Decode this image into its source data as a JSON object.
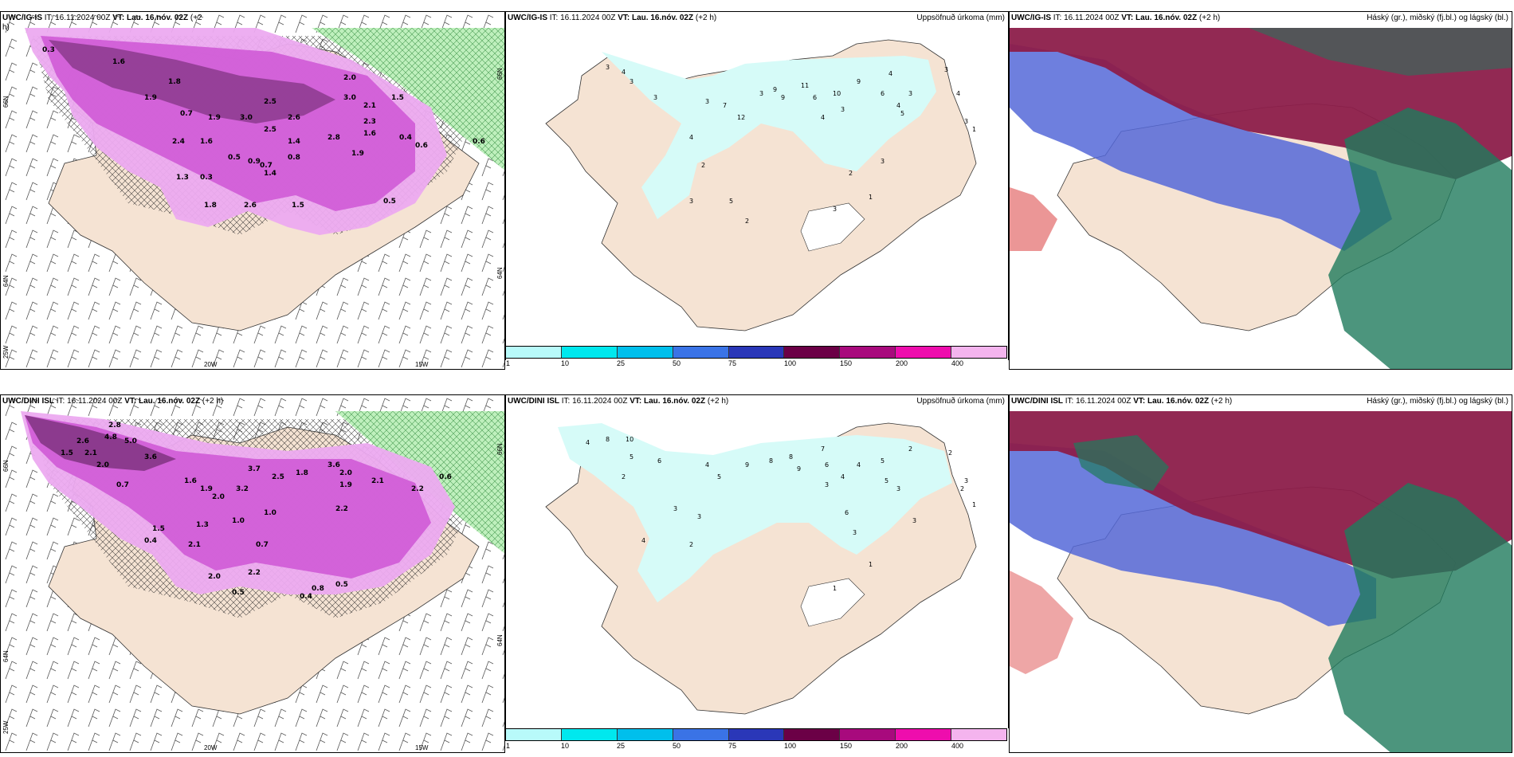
{
  "row1": {
    "wind_title": {
      "model": "UWC/IG-IS",
      "it_label": "IT:",
      "it_value": "16.11.2024 00Z",
      "vt_label": "VT:",
      "vt_value": "Lau. 16.nóv. 02Z",
      "lead": "(+2",
      "lead2": "h)"
    },
    "precip_title": {
      "model": "UWC/IG-IS",
      "it_label": "IT:",
      "it_value": "16.11.2024 00Z",
      "vt_label": "VT:",
      "vt_value": "Lau. 16.nóv. 02Z",
      "lead": "(+2 h)",
      "right": "Uppsöfnuð úrkoma (mm)"
    },
    "cloud_title": {
      "model": "UWC/IG-IS",
      "it_label": "IT:",
      "it_value": "16.11.2024 00Z",
      "vt_label": "VT:",
      "vt_value": "Lau. 16.nóv. 02Z",
      "lead": "(+2 h)",
      "right": "Háský (gr.), miðský (fj.bl.) og lágský (bl.)"
    },
    "wind_values": [
      "0.3",
      "1.6",
      "1.8",
      "2.5",
      "1.9",
      "0.7",
      "1.9",
      "3.0",
      "2.5",
      "2.6",
      "2.0",
      "3.0",
      "2.1",
      "2.3",
      "1.6",
      "1.5",
      "2.4",
      "1.6",
      "0.5",
      "0.9",
      "0.7",
      "1.4",
      "0.8",
      "2.8",
      "1.4",
      "1.9",
      "1.3",
      "0.3",
      "1.8",
      "2.6",
      "1.5",
      "0.5",
      "0.4",
      "0.6",
      "0.6"
    ],
    "precip_values": [
      "3",
      "4",
      "3",
      "3",
      "3",
      "7",
      "12",
      "3",
      "9",
      "9",
      "11",
      "6",
      "10",
      "9",
      "4",
      "6",
      "4",
      "3",
      "4",
      "3",
      "5",
      "3",
      "4",
      "3",
      "4",
      "2",
      "2",
      "5",
      "3",
      "2",
      "1",
      "3",
      "1",
      "3"
    ]
  },
  "row2": {
    "wind_title": {
      "model": "UWC/DINI ISL",
      "it_label": "IT:",
      "it_value": "16.11.2024 00Z",
      "vt_label": "VT:",
      "vt_value": "Lau. 16.nóv. 02Z",
      "lead": "(+2 h)"
    },
    "precip_title": {
      "model": "UWC/DINI ISL",
      "it_label": "IT:",
      "it_value": "16.11.2024 00Z",
      "vt_label": "VT:",
      "vt_value": "Lau. 16.nóv. 02Z",
      "lead": "(+2 h)",
      "right": "Uppsöfnuð úrkoma (mm)"
    },
    "cloud_title": {
      "model": "UWC/DINI ISL",
      "it_label": "IT:",
      "it_value": "16.11.2024 00Z",
      "vt_label": "VT:",
      "vt_value": "Lau. 16.nóv. 02Z",
      "lead": "(+2 h)",
      "right": "Háský (gr.), miðský (fj.bl.) og lágský (bl.)"
    },
    "wind_values": [
      "2.8",
      "2.6",
      "4.8",
      "5.0",
      "1.5",
      "2.1",
      "2.0",
      "3.6",
      "0.7",
      "1.6",
      "1.9",
      "2.0",
      "3.2",
      "3.7",
      "2.5",
      "1.8",
      "3.6",
      "2.0",
      "2.1",
      "1.9",
      "2.2",
      "1.0",
      "1.3",
      "2.1",
      "0.7",
      "0.4",
      "1.5",
      "1.0",
      "2.0",
      "2.2",
      "0.5",
      "0.8",
      "0.5",
      "0.4",
      "2.2",
      "0.6"
    ],
    "precip_values": [
      "4",
      "8",
      "10",
      "5",
      "6",
      "2",
      "4",
      "5",
      "9",
      "8",
      "8",
      "9",
      "7",
      "6",
      "4",
      "3",
      "4",
      "5",
      "2",
      "5",
      "3",
      "2",
      "3",
      "3",
      "4",
      "6",
      "3",
      "3",
      "1",
      "2",
      "1",
      "3",
      "1",
      "2"
    ]
  },
  "axis_labels": {
    "lat_66": "66N",
    "lat_64": "64N",
    "lon_25": "25W",
    "lon_20": "20W",
    "lon_15": "15W",
    "lat_r66": "66N",
    "lat_r64": "64N"
  },
  "legend": {
    "labels": [
      "1",
      "10",
      "25",
      "50",
      "75",
      "100",
      "150",
      "200",
      "400"
    ],
    "colors": [
      "#b8fafa",
      "#00e8ee",
      "#00bfec",
      "#3a73e6",
      "#2a37b8",
      "#6b0046",
      "#a80a7d",
      "#ee0dad",
      "#f4b4ee"
    ]
  },
  "colors": {
    "land": "#f5e3d3",
    "snow_light": "#d6fbf8",
    "precip_light": "#ecaaf0",
    "precip_mid": "#cf5ad6",
    "precip_dark": "#6e2a6e",
    "green_hatch": "#bff0bd",
    "cloud_high": "#8c1d4a",
    "cloud_mid": "#1f7a5c",
    "cloud_low": "#5568d8"
  }
}
